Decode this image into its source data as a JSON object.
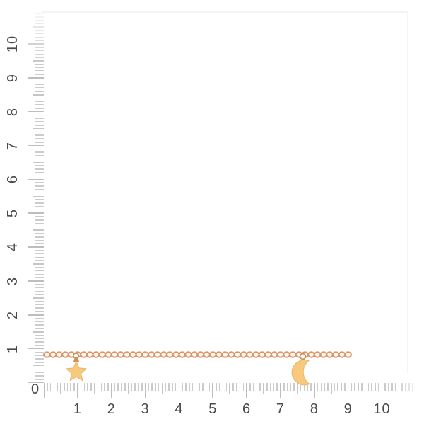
{
  "photo": {
    "subject": "Gold chain bracelet with a star charm and a crescent moon charm photographed over a centimeter ruler background",
    "background_color": "#ffffff",
    "border_color": "#f4f4f4"
  },
  "ruler": {
    "origin_label": "0",
    "vertical_labels": [
      "1",
      "2",
      "3",
      "4",
      "5",
      "6",
      "7",
      "8",
      "9",
      "10"
    ],
    "horizontal_labels": [
      "1",
      "2",
      "3",
      "4",
      "5",
      "6",
      "7",
      "8",
      "9",
      "10"
    ],
    "tick_color": "#cbcbcb",
    "half_tick_color": "#c6c6c6",
    "major_tick_color": "#bdbdbd",
    "label_color": "#4a4a4a"
  },
  "bracelet": {
    "chain_color": "#dc9468",
    "chain_inner_color": "#fef8f1",
    "charm_fill": "#f6c97d",
    "charm_edge": "#ecb365",
    "connector_color": "#cd9158",
    "charms": [
      {
        "name": "star-charm",
        "position_cm": 0.95
      },
      {
        "name": "moon-charm",
        "position_cm": 7.65
      }
    ],
    "chain_span_cm": [
      0,
      9.1
    ],
    "chain_height_cm": 0.8
  }
}
